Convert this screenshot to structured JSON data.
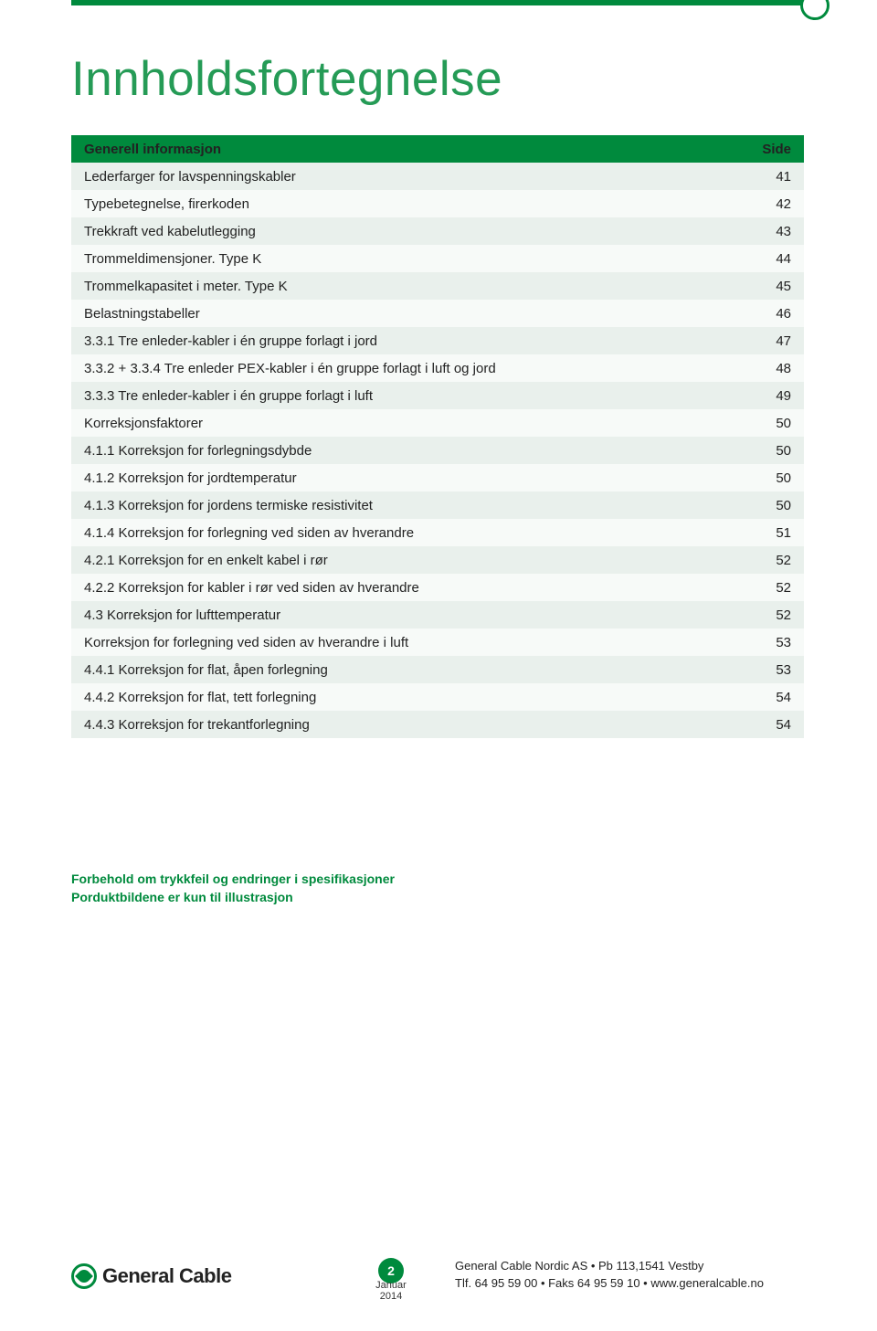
{
  "colors": {
    "brand_green": "#008a3d",
    "title_green": "#259b56",
    "row_even": "#e9f0ec",
    "row_odd": "#f7faf8",
    "text": "#222222",
    "white": "#ffffff"
  },
  "page_title": "Innholdsfortegnelse",
  "table": {
    "header": {
      "label": "Generell informasjon",
      "page": "Side"
    },
    "rows": [
      {
        "label": "Lederfarger for lavspenningskabler",
        "page": "41"
      },
      {
        "label": "Typebetegnelse, firerkoden",
        "page": "42"
      },
      {
        "label": "Trekkraft ved kabelutlegging",
        "page": "43"
      },
      {
        "label": "Trommeldimensjoner. Type K",
        "page": "44"
      },
      {
        "label": "Trommelkapasitet i meter. Type K",
        "page": "45"
      },
      {
        "label": "Belastningstabeller",
        "page": "46"
      },
      {
        "label": "3.3.1 Tre enleder-kabler i én gruppe forlagt i jord",
        "page": "47"
      },
      {
        "label": "3.3.2 + 3.3.4 Tre enleder PEX-kabler i én gruppe forlagt i luft og jord",
        "page": "48"
      },
      {
        "label": "3.3.3 Tre enleder-kabler i én gruppe forlagt i luft",
        "page": "49"
      },
      {
        "label": "Korreksjonsfaktorer",
        "page": "50"
      },
      {
        "label": "4.1.1 Korreksjon for forlegningsdybde",
        "page": "50"
      },
      {
        "label": "4.1.2 Korreksjon for jordtemperatur",
        "page": "50"
      },
      {
        "label": "4.1.3 Korreksjon for jordens termiske resistivitet",
        "page": "50"
      },
      {
        "label": "4.1.4 Korreksjon for forlegning ved siden av hverandre",
        "page": "51"
      },
      {
        "label": "4.2.1 Korreksjon for en enkelt kabel i rør",
        "page": "52"
      },
      {
        "label": "4.2.2 Korreksjon for kabler i rør ved siden av hverandre",
        "page": "52"
      },
      {
        "label": "4.3 Korreksjon for lufttemperatur",
        "page": "52"
      },
      {
        "label": "Korreksjon for forlegning ved siden av hverandre i luft",
        "page": "53"
      },
      {
        "label": "4.4.1 Korreksjon for flat, åpen forlegning",
        "page": "53"
      },
      {
        "label": "4.4.2 Korreksjon for flat, tett forlegning",
        "page": "54"
      },
      {
        "label": "4.4.3 Korreksjon for trekantforlegning",
        "page": "54"
      }
    ]
  },
  "disclaimer": {
    "line1": "Forbehold om trykkfeil og endringer i spesifikasjoner",
    "line2": "Porduktbildene er kun til illustrasjon"
  },
  "footer": {
    "brand": "General Cable",
    "page_number": "2",
    "date": "Januar 2014",
    "address_line1": "General Cable Nordic AS • Pb 113,1541 Vestby",
    "address_line2": "Tlf. 64 95 59 00 • Faks 64 95 59 10 • www.generalcable.no"
  }
}
